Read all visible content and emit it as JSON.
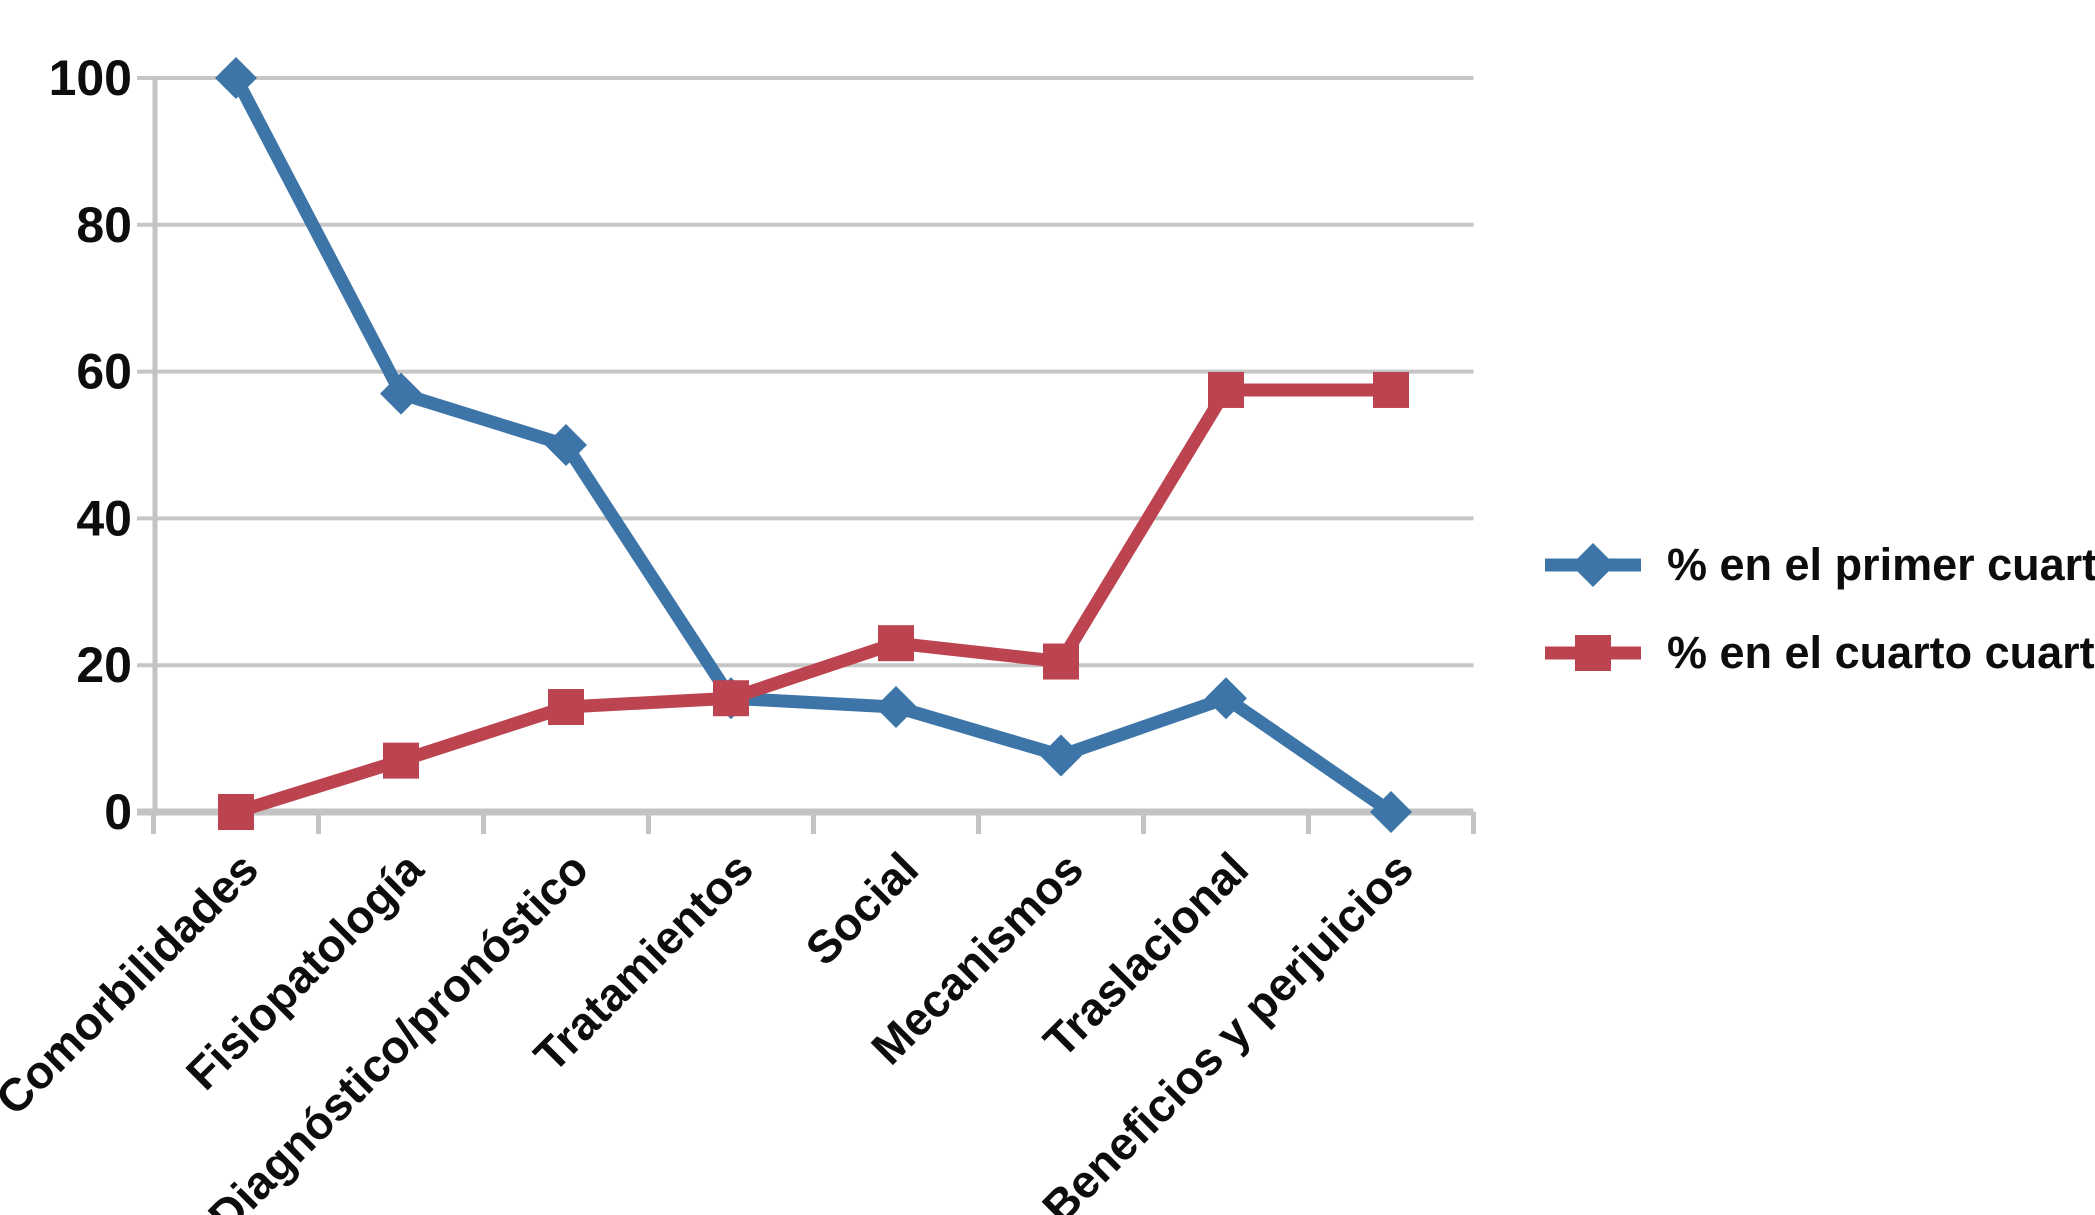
{
  "chart_data": {
    "type": "line",
    "title": "",
    "xlabel": "",
    "ylabel": "",
    "categories": [
      "Comorbilidades",
      "Fisiopatología",
      "Diagnóstico/pronóstico",
      "Tratamientos",
      "Social",
      "Mecanismos",
      "Traslacional",
      "Beneficios y perjuicios"
    ],
    "series": [
      {
        "name": "% en el primer cuartil",
        "marker": "diamond",
        "color": "#3E75A8",
        "values": [
          100,
          57,
          50,
          15.5,
          14.3,
          7.7,
          15.5,
          0
        ]
      },
      {
        "name": "% en el cuarto cuartil",
        "marker": "square",
        "color": "#BC4450",
        "values": [
          0,
          7,
          14.3,
          15.5,
          23,
          20.5,
          57.5,
          57.5
        ]
      }
    ],
    "ylim": [
      0,
      100
    ],
    "yticks": [
      0,
      20,
      40,
      60,
      80,
      100
    ],
    "grid": true,
    "legend_position": "right",
    "colors": {
      "gridline": "#C6C6C6",
      "axis": "#C3C3C3",
      "text": "#0D0D0D",
      "background": "#FFFFFF"
    }
  }
}
